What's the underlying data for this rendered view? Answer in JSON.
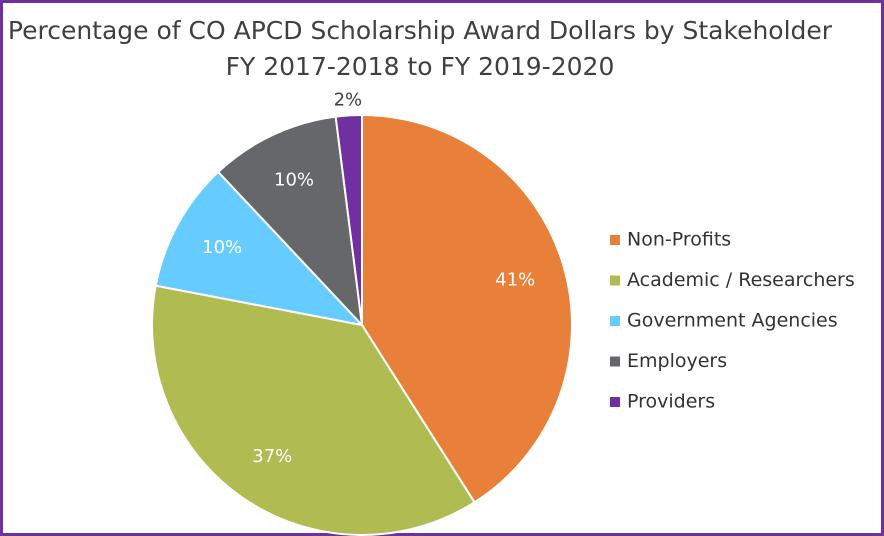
{
  "chart_data": {
    "type": "pie",
    "title": "Percentage of CO APCD Scholarship Award Dollars by Stakeholder",
    "subtitle": "FY 2017-2018 to FY 2019-2020",
    "categories": [
      "Non-Profits",
      "Academic / Researchers",
      "Government Agencies",
      "Employers",
      "Providers"
    ],
    "values": [
      41,
      37,
      10,
      10,
      2
    ],
    "value_labels": [
      "41%",
      "37%",
      "10%",
      "10%",
      "2%"
    ],
    "colors": [
      "#e8803a",
      "#b0bc52",
      "#66ccff",
      "#66676b",
      "#7030a0"
    ],
    "legend": "right"
  }
}
